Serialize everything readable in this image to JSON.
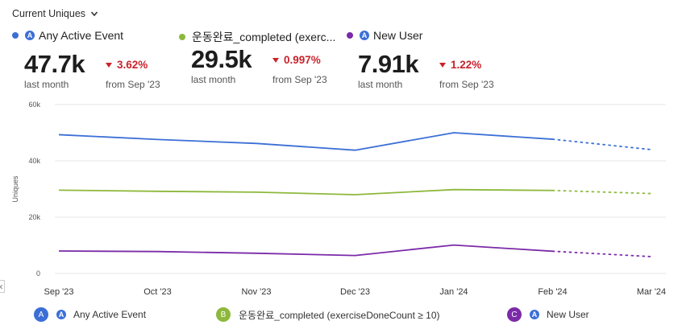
{
  "header": {
    "title": "Current Uniques"
  },
  "metrics": [
    {
      "name": "Any Active Event",
      "value": "47.7k",
      "period": "last month",
      "change": "3.62%",
      "from": "from Sep '23",
      "color": "#3b6fd6",
      "icon": "funnel-a-icon"
    },
    {
      "name": "운동완료_completed (exerc...",
      "value": "29.5k",
      "period": "last month",
      "change": "0.997%",
      "from": "from Sep '23",
      "color": "#8db83b"
    },
    {
      "name": "New User",
      "value": "7.91k",
      "period": "last month",
      "change": "1.22%",
      "from": "from Sep '23",
      "color": "#7b2aa8",
      "icon": "funnel-a-icon"
    }
  ],
  "legend": [
    {
      "badge": "A",
      "label": "Any Active Event",
      "color": "#3b6fd6"
    },
    {
      "badge": "B",
      "label": "운동완료_completed (exerciseDoneCount ≥ 10)",
      "color": "#8db83b"
    },
    {
      "badge": "C",
      "label": "New User",
      "color": "#7b2aa8"
    }
  ],
  "chart_data": {
    "type": "line",
    "ylabel": "Uniques",
    "ylim": [
      0,
      60000
    ],
    "yticks": [
      0,
      20000,
      40000,
      60000
    ],
    "ytick_labels": [
      "0",
      "20k",
      "40k",
      "60k"
    ],
    "categories": [
      "Sep '23",
      "Oct '23",
      "Nov '23",
      "Dec '23",
      "Jan '24",
      "Feb '24",
      "Mar '24"
    ],
    "projected_from_index": 5,
    "grid": true,
    "series": [
      {
        "name": "Any Active Event",
        "color": "#3b6fd6",
        "values": [
          49300,
          47600,
          46200,
          43800,
          50000,
          47700,
          44000
        ]
      },
      {
        "name": "운동완료_completed (exerciseDoneCount ≥ 10)",
        "color": "#8db83b",
        "values": [
          29600,
          29200,
          28900,
          28000,
          29800,
          29500,
          28400
        ]
      },
      {
        "name": "New User",
        "color": "#7b2aa8",
        "values": [
          8000,
          7800,
          7200,
          6400,
          10100,
          7910,
          6000
        ]
      }
    ]
  }
}
